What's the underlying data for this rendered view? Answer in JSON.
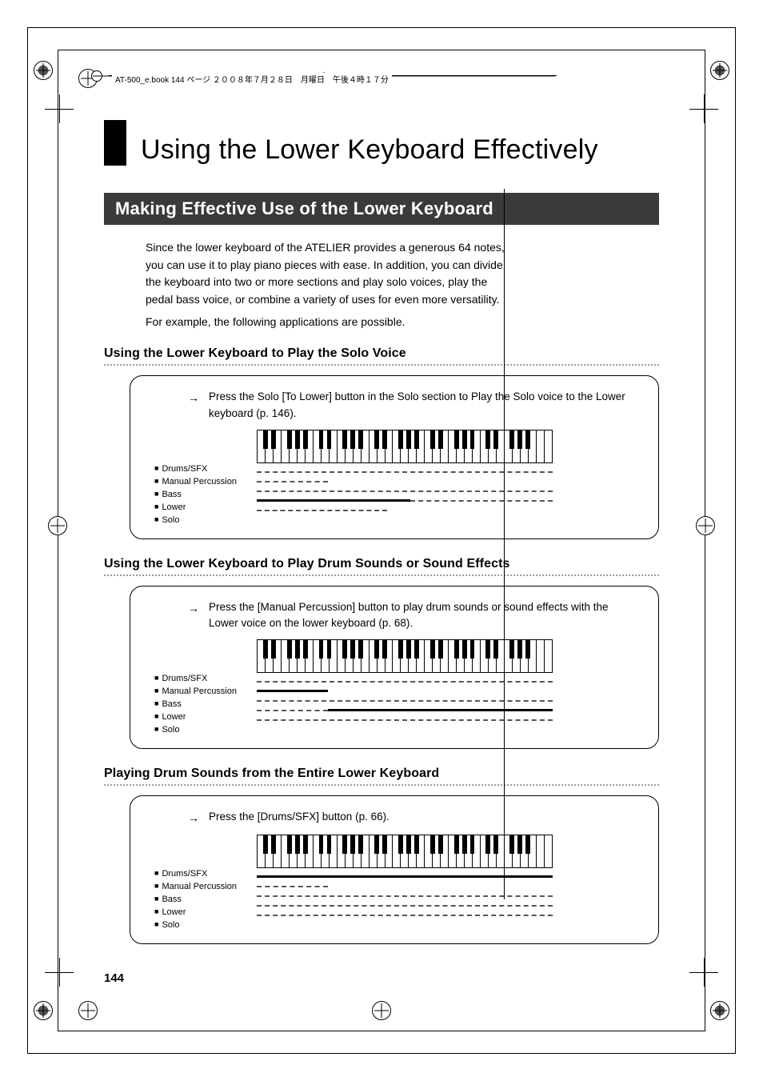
{
  "header_text": "AT-500_e.book  144 ページ  ２００８年７月２８日　月曜日　午後４時１７分",
  "chapter_title": "Using the Lower Keyboard Effectively",
  "section_title": "Making Effective Use of the Lower Keyboard",
  "intro_p1": "Since the lower keyboard of the ATELIER provides a generous 64 notes, you can use it to play piano pieces with ease. In addition, you can divide the keyboard into two or more sections and play solo voices, play the pedal bass voice, or combine a variety of uses for even more versatility.",
  "intro_p2": "For example, the following applications are possible.",
  "sub1_title": "Using the Lower Keyboard to Play the Solo Voice",
  "sub1_step": "Press the Solo [To Lower] button in the Solo section to Play the Solo voice to the Lower keyboard (p. 146).",
  "sub2_title": "Using the Lower Keyboard to Play Drum Sounds or Sound Effects",
  "sub2_step": "Press the [Manual Percussion] button to play drum sounds or sound effects with the Lower voice on the lower keyboard (p. 68).",
  "sub3_title": "Playing Drum Sounds from the Entire Lower Keyboard",
  "sub3_step": "Press the [Drums/SFX] button (p. 66).",
  "legend_labels": [
    "Drums/SFX",
    "Manual Percussion",
    "Bass",
    "Lower",
    "Solo"
  ],
  "page_number": "144",
  "keyboard": {
    "white_key_count": 37,
    "octave_count": 5
  },
  "ranges": {
    "panel1": [
      {
        "label": "Drums/SFX",
        "style": "dashed",
        "from": 0,
        "to": 100
      },
      {
        "label": "Manual Percussion",
        "style": "dashed",
        "from": 0,
        "to": 24
      },
      {
        "label": "Bass",
        "style": "dashed",
        "from": 0,
        "to": 100
      },
      {
        "label": "Lower",
        "style": "solid",
        "from": 0,
        "to": 52,
        "tail_style": "dashed",
        "tail_from": 52,
        "tail_to": 100
      },
      {
        "label": "Solo",
        "style": "dashed",
        "from": 0,
        "to": 44
      }
    ],
    "panel2": [
      {
        "label": "Drums/SFX",
        "style": "dashed",
        "from": 0,
        "to": 100
      },
      {
        "label": "Manual Percussion",
        "style": "solid",
        "from": 0,
        "to": 24
      },
      {
        "label": "Bass",
        "style": "dashed",
        "from": 0,
        "to": 100
      },
      {
        "label": "Lower",
        "style": "dashed_solid",
        "from": 0,
        "to": 24,
        "tail_style": "solid",
        "tail_from": 24,
        "tail_to": 100
      },
      {
        "label": "Solo",
        "style": "dashed",
        "from": 0,
        "to": 100
      }
    ],
    "panel3": [
      {
        "label": "Drums/SFX",
        "style": "solid",
        "from": 0,
        "to": 100
      },
      {
        "label": "Manual Percussion",
        "style": "dashed",
        "from": 0,
        "to": 24
      },
      {
        "label": "Bass",
        "style": "dashed",
        "from": 0,
        "to": 100
      },
      {
        "label": "Lower",
        "style": "dashed",
        "from": 0,
        "to": 100
      },
      {
        "label": "Solo",
        "style": "dashed",
        "from": 0,
        "to": 100
      }
    ]
  },
  "colors": {
    "section_bg": "#3a3a3a",
    "dashed": "#555555",
    "dots": "#9a9a9a"
  }
}
